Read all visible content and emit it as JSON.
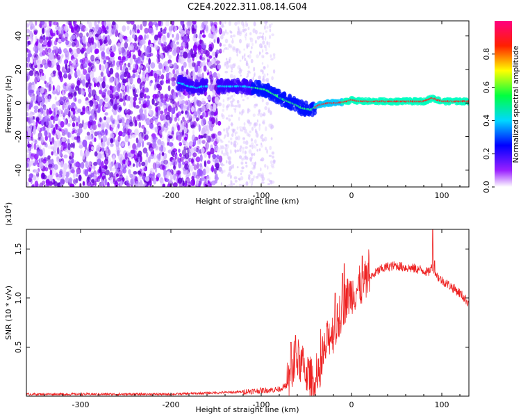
{
  "title": "C2E4.2022.311.08.14.G04",
  "chart_data": [
    {
      "type": "heatmap",
      "xlabel": "Height of straight line (km)",
      "ylabel": "Frequency (Hz)",
      "xlim": [
        -360,
        130
      ],
      "ylim": [
        -50,
        49
      ],
      "xticks": [
        -300,
        -200,
        -100,
        0,
        100
      ],
      "xtick_labels": [
        "-300",
        "-200",
        "-100",
        "0",
        "100"
      ],
      "yticks": [
        -40,
        -20,
        0,
        20,
        40
      ],
      "ytick_labels": [
        "-40",
        "-20",
        "0",
        "20",
        "40"
      ],
      "colorbar": {
        "label": "Normalized spectral amplitude",
        "range": [
          0,
          1
        ],
        "ticks": [
          0.0,
          0.2,
          0.4,
          0.6,
          0.8
        ],
        "tick_labels": [
          "0.0",
          "0.2",
          "0.4",
          "0.6",
          "0.8"
        ],
        "colormap": [
          "#ffffff",
          "#8a00ff",
          "#0000ff",
          "#00ffff",
          "#00ff00",
          "#ffff00",
          "#ff0000",
          "#ff0090"
        ]
      },
      "ridge": {
        "x": [
          -190,
          -180,
          -170,
          -165,
          -140,
          -120,
          -105,
          -95,
          -85,
          -75,
          -65,
          -55,
          -45,
          -35,
          -25,
          -15,
          -5,
          0,
          10,
          30,
          60,
          80,
          90,
          100,
          120,
          130
        ],
        "y": [
          12,
          10,
          9,
          10,
          10,
          10,
          9,
          8,
          5,
          2,
          0,
          -3,
          -4,
          -1,
          0,
          0,
          1,
          2,
          1,
          1,
          1,
          1,
          3,
          1,
          1,
          1
        ]
      },
      "grid": false
    },
    {
      "type": "line",
      "xlabel": "Height of straight line (km)",
      "ylabel": "SNR (10 * v/v)",
      "multiplier": "(x10",
      "multiplier_exp": "4",
      "multiplier_close": ")",
      "xlim": [
        -360,
        130
      ],
      "ylim": [
        0,
        1.7
      ],
      "xticks": [
        -300,
        -200,
        -100,
        0,
        100
      ],
      "xtick_labels": [
        "-300",
        "-200",
        "-100",
        "0",
        "100"
      ],
      "yticks": [
        0.5,
        1.0,
        1.5
      ],
      "ytick_labels": [
        "0.5",
        "1.0",
        "1.5"
      ],
      "series_color": "#ee2222",
      "envelope": {
        "x": [
          -360,
          -200,
          -130,
          -110,
          -80,
          -70,
          -65,
          -60,
          -55,
          -50,
          -45,
          -40,
          -35,
          -30,
          -25,
          -20,
          -15,
          -10,
          -5,
          0,
          5,
          10,
          20,
          30,
          40,
          50,
          60,
          70,
          80,
          85,
          90,
          95,
          100,
          110,
          120,
          130
        ],
        "y": [
          0.02,
          0.02,
          0.04,
          0.05,
          0.07,
          0.12,
          0.25,
          0.38,
          0.32,
          0.25,
          0.18,
          0.12,
          0.2,
          0.45,
          0.62,
          0.65,
          0.75,
          0.9,
          1.0,
          1.05,
          1.08,
          1.12,
          1.2,
          1.28,
          1.32,
          1.33,
          1.31,
          1.3,
          1.28,
          1.26,
          1.33,
          1.22,
          1.18,
          1.12,
          1.05,
          0.95
        ]
      },
      "spikes": [
        {
          "x": -67,
          "y": 0.55
        },
        {
          "x": -62,
          "y": 0.62
        },
        {
          "x": -58,
          "y": 0.5
        },
        {
          "x": -18,
          "y": 1.05
        },
        {
          "x": -10,
          "y": 1.25
        },
        {
          "x": -8,
          "y": 1.35
        },
        {
          "x": 12,
          "y": 1.43
        },
        {
          "x": 90,
          "y": 1.7
        },
        {
          "x": 92,
          "y": 1.38
        }
      ],
      "grid": false
    }
  ]
}
